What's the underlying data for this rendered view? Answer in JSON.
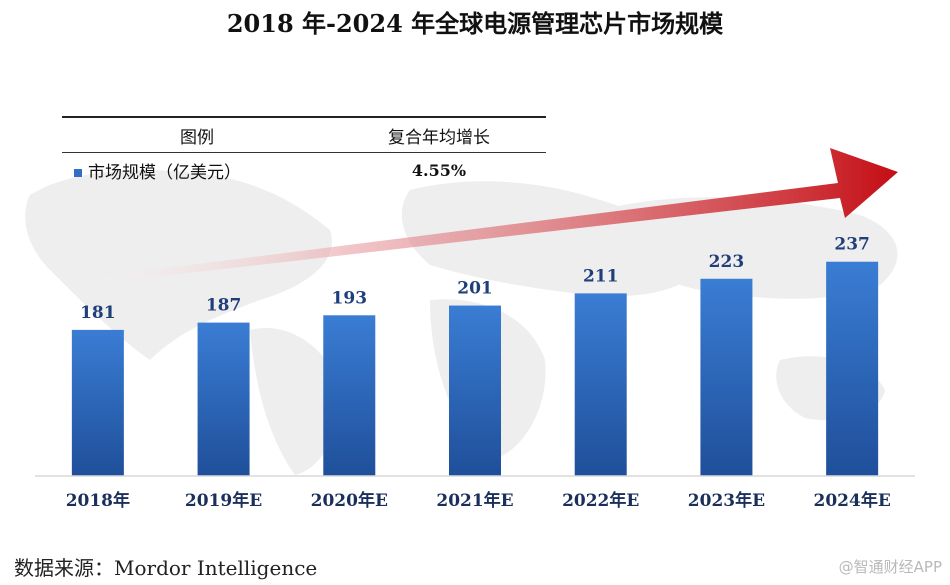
{
  "title": "2018 年-2024 年全球电源管理芯片市场规模",
  "legend": {
    "header_label": "图例",
    "header_cagr": "复合年均增长",
    "series_label": "市场规模（亿美元）",
    "cagr_value": "4.55%"
  },
  "source": "数据来源：Mordor Intelligence",
  "watermark": "@智通财经APP",
  "colors": {
    "bar_top": "#3a7dd4",
    "bar_bottom": "#1f4f9a",
    "arrow": "#c40d14",
    "value_label": "#1f3f7a"
  },
  "chart_data": {
    "type": "bar",
    "title": "2018 年-2024 年全球电源管理芯片市场规模",
    "categories": [
      "2018年",
      "2019年E",
      "2020年E",
      "2021年E",
      "2022年E",
      "2023年E",
      "2024年E"
    ],
    "series": [
      {
        "name": "市场规模（亿美元）",
        "values": [
          181,
          187,
          193,
          201,
          211,
          223,
          237
        ]
      }
    ],
    "data_labels": [
      "181",
      "187",
      "193",
      "201",
      "211",
      "223",
      "237"
    ],
    "annotation": "复合年均增长 4.55%",
    "grid": false,
    "legend": "top-left"
  }
}
